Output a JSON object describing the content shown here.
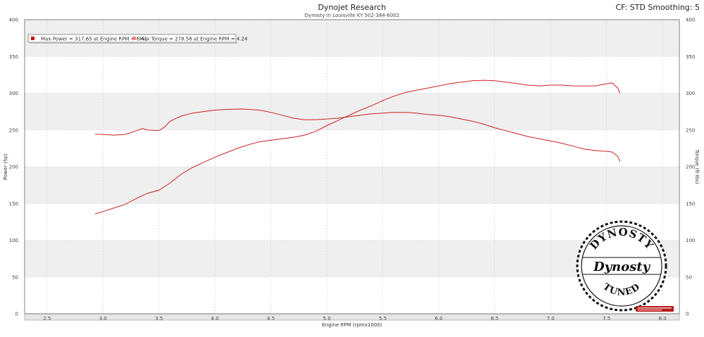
{
  "header": {
    "title": "Dynojet Research",
    "subtitle": "Dynosty in Louisville KY 502-384-6002",
    "right_info": "CF: STD Smoothing: 5"
  },
  "stamp": {
    "top_text": "DYNOSTY",
    "script_text": "Dynosty",
    "bottom_text": "TUNED"
  },
  "chart_data": {
    "type": "line",
    "xlabel": "Engine RPM (rpmx1000)",
    "ylabel_left": "Power (hp)",
    "ylabel_right": "Torque (ft-lbs)",
    "xlim": [
      2.3,
      8.15
    ],
    "ylim": [
      0,
      400
    ],
    "x_ticks": [
      "2.5",
      "3.0",
      "3.5",
      "4.0",
      "4.5",
      "5.0",
      "5.5",
      "6.0",
      "6.5",
      "7.0",
      "7.5",
      "8.0"
    ],
    "y_ticks": [
      "0",
      "50",
      "100",
      "150",
      "200",
      "250",
      "300",
      "350",
      "400"
    ],
    "bands": [
      [
        50,
        100
      ],
      [
        150,
        200
      ],
      [
        250,
        300
      ],
      [
        350,
        400
      ]
    ],
    "legend": [
      {
        "label": "Max Power = 317.65 at Engine RPM = 6.41",
        "color": "#cc1111"
      },
      {
        "label": "Max Torque = 278.58 at Engine RPM = 4.24",
        "color": "#f08080"
      }
    ],
    "series": [
      {
        "color": "#cc2020",
        "x": [
          2.93,
          3.0,
          3.1,
          3.2,
          3.3,
          3.4,
          3.5,
          3.6,
          3.7,
          3.8,
          3.9,
          4.0,
          4.1,
          4.2,
          4.3,
          4.4,
          4.5,
          4.6,
          4.7,
          4.8,
          4.9,
          5.0,
          5.1,
          5.2,
          5.3,
          5.4,
          5.5,
          5.6,
          5.7,
          5.8,
          5.9,
          6.0,
          6.1,
          6.2,
          6.3,
          6.41,
          6.5,
          6.6,
          6.7,
          6.8,
          6.9,
          7.0,
          7.1,
          7.2,
          7.3,
          7.4,
          7.5,
          7.55,
          7.6,
          7.62
        ],
        "values": [
          136,
          139,
          144,
          149,
          157,
          164,
          168,
          178,
          190,
          199,
          206,
          213,
          219,
          225,
          230,
          234,
          236,
          238,
          240,
          243,
          248,
          256,
          263,
          270,
          277,
          283,
          290,
          296,
          301,
          304,
          307,
          310,
          313,
          315,
          317,
          317.65,
          317,
          315,
          313,
          311,
          310,
          311,
          311,
          310,
          310,
          310,
          313,
          314,
          307,
          300
        ]
      },
      {
        "color": "#cc2020",
        "x": [
          2.93,
          3.0,
          3.1,
          3.2,
          3.3,
          3.35,
          3.4,
          3.5,
          3.55,
          3.6,
          3.7,
          3.8,
          3.9,
          4.0,
          4.1,
          4.24,
          4.3,
          4.4,
          4.5,
          4.6,
          4.7,
          4.8,
          4.9,
          5.0,
          5.1,
          5.2,
          5.3,
          5.4,
          5.5,
          5.6,
          5.7,
          5.8,
          5.9,
          6.0,
          6.1,
          6.2,
          6.3,
          6.4,
          6.5,
          6.6,
          6.7,
          6.8,
          6.9,
          7.0,
          7.1,
          7.2,
          7.3,
          7.4,
          7.5,
          7.55,
          7.6,
          7.62
        ],
        "values": [
          244,
          244,
          243,
          244,
          249,
          252,
          250,
          249,
          254,
          262,
          269,
          273,
          275,
          277,
          278,
          278.58,
          278,
          277,
          274,
          270,
          266,
          264,
          264,
          265,
          266,
          268,
          270,
          272,
          273,
          274,
          274,
          273,
          271,
          270,
          268,
          265,
          262,
          258,
          253,
          249,
          245,
          241,
          238,
          235,
          232,
          228,
          224,
          222,
          221,
          220,
          214,
          207
        ]
      }
    ]
  }
}
